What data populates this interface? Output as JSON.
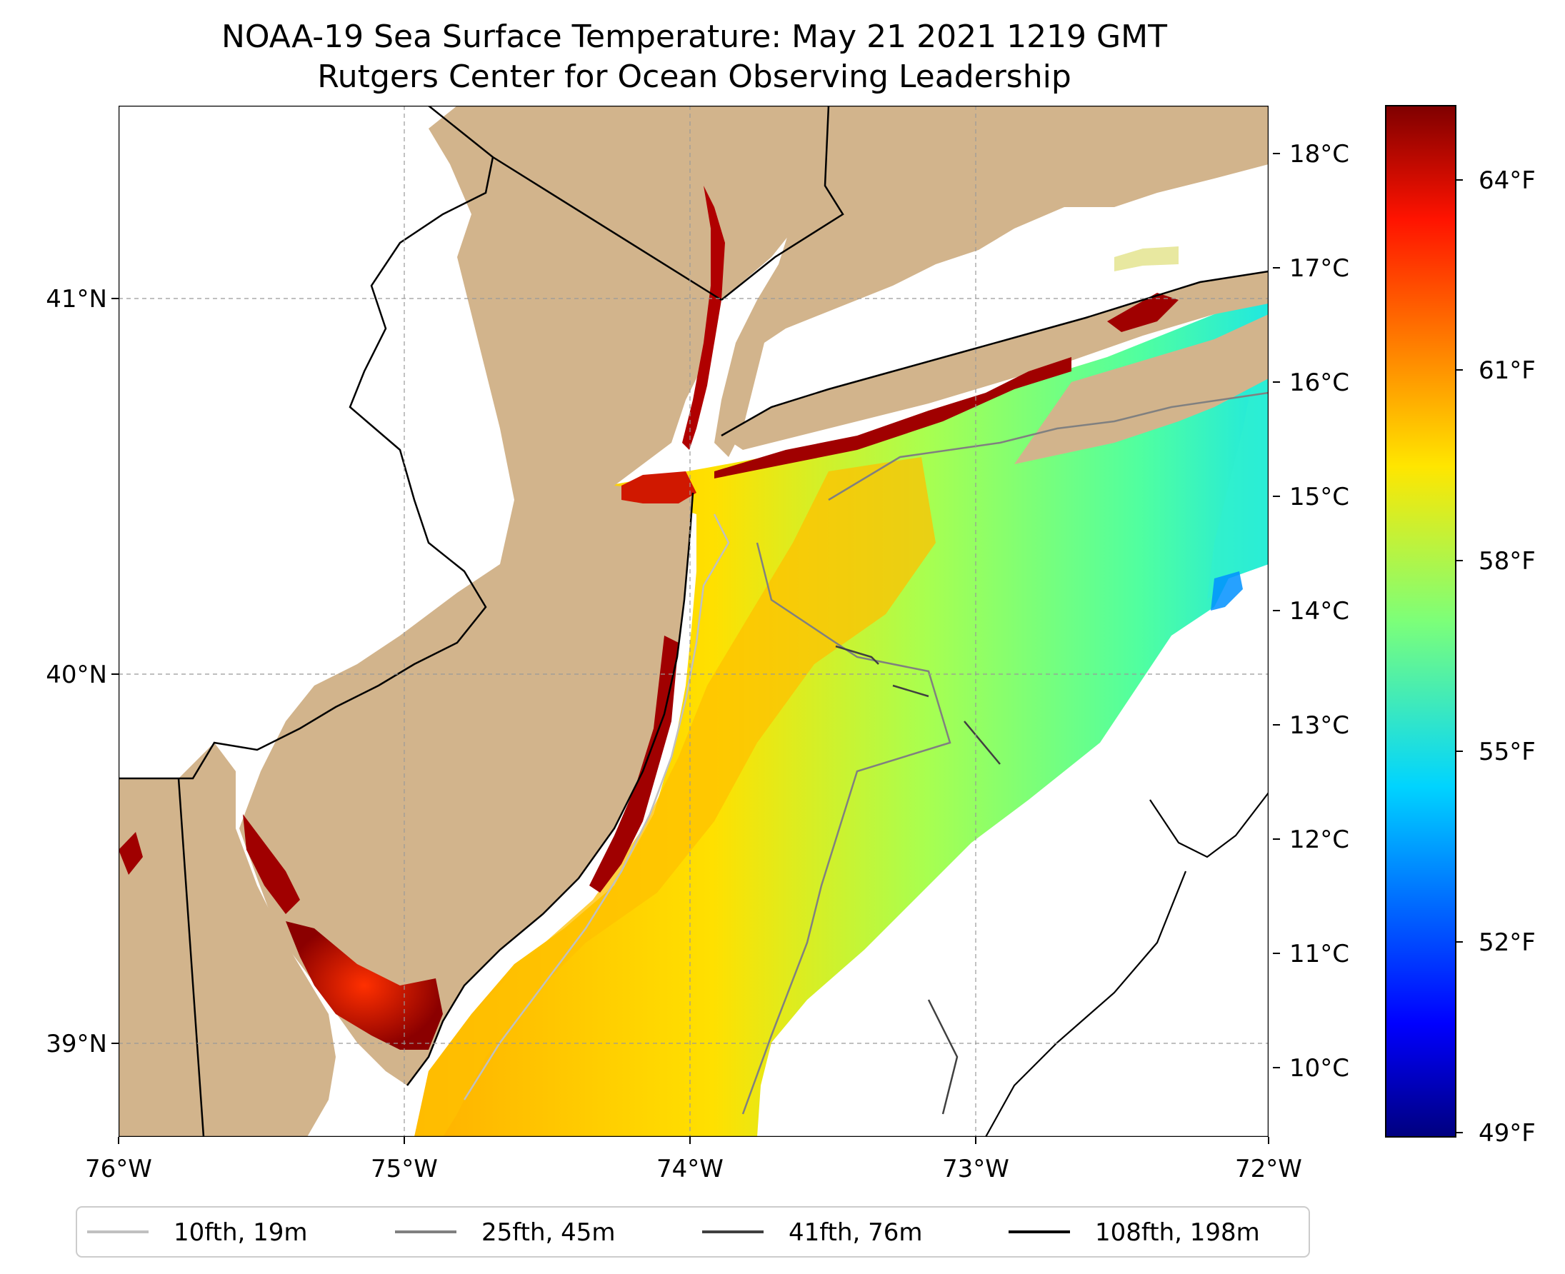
{
  "title": {
    "line1": "NOAA-19 Sea Surface Temperature: May 21 2021 1219 GMT",
    "line2": "Rutgers Center for Ocean Observing Leadership"
  },
  "map": {
    "lon_range": [
      -76,
      -72
    ],
    "lat_range": [
      38.72,
      41.52
    ],
    "lon_ticks": [
      "76°W",
      "75°W",
      "74°W",
      "73°W",
      "72°W"
    ],
    "lat_ticks": [
      "41°N",
      "40°N",
      "39°N"
    ],
    "land_color": "#D2B48C",
    "no_data_color": "#FFFFFF",
    "grid": "dashed"
  },
  "colorbar": {
    "colormap": "jet",
    "celsius_ticks": [
      "18°C",
      "17°C",
      "16°C",
      "15°C",
      "14°C",
      "13°C",
      "12°C",
      "11°C",
      "10°C"
    ],
    "fahrenheit_ticks": [
      "64°F",
      "61°F",
      "58°F",
      "55°F",
      "52°F",
      "49°F"
    ],
    "range_f": [
      49,
      65
    ]
  },
  "legend": {
    "items": [
      {
        "label": "10fth, 19m",
        "color": "#C0C0C0"
      },
      {
        "label": "25fth, 45m",
        "color": "#808080"
      },
      {
        "label": "41fth, 76m",
        "color": "#404040"
      },
      {
        "label": "108fth, 198m",
        "color": "#000000"
      }
    ]
  }
}
